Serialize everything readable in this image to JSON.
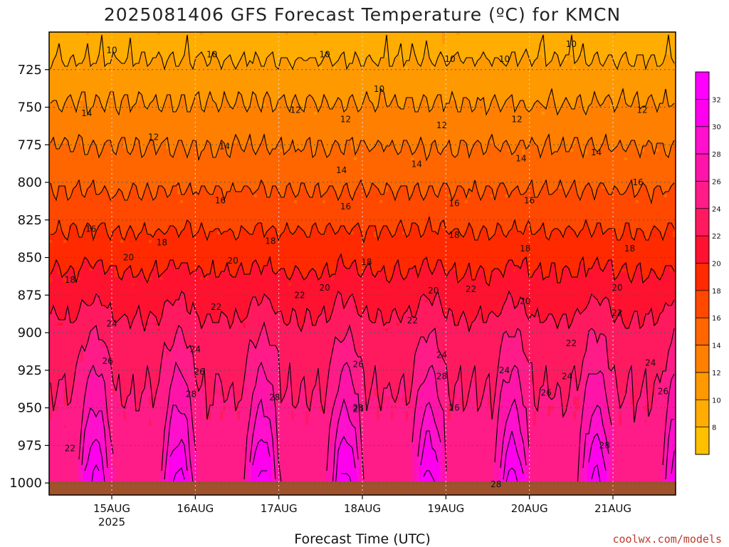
{
  "chart_data": {
    "type": "heatmap",
    "title": "2025081406 GFS Forecast Temperature (ºC) for KMCN",
    "xlabel": "Forecast Time (UTC)",
    "ylabel": "",
    "credit": "coolwx.com/models",
    "y_ticks": [
      "725",
      "750",
      "775",
      "800",
      "825",
      "850",
      "875",
      "900",
      "925",
      "950",
      "975",
      "1000"
    ],
    "y_tick_values": [
      725,
      750,
      775,
      800,
      825,
      850,
      875,
      900,
      925,
      950,
      975,
      1000
    ],
    "ylim": [
      700,
      1008
    ],
    "y_inverted": true,
    "x_ticks": [
      "15AUG",
      "16AUG",
      "17AUG",
      "18AUG",
      "19AUG",
      "20AUG",
      "21AUG"
    ],
    "x_year": "2025",
    "xlim_days": [
      14.25,
      21.75
    ],
    "colorbar": {
      "ticks": [
        "8",
        "10",
        "12",
        "14",
        "16",
        "18",
        "20",
        "22",
        "24",
        "26",
        "28",
        "30",
        "32"
      ],
      "levels": [
        8,
        10,
        12,
        14,
        16,
        18,
        20,
        22,
        24,
        26,
        28,
        30,
        32
      ],
      "range": [
        6,
        34
      ],
      "colors": [
        "#ffc000",
        "#ffad00",
        "#ff9900",
        "#ff8000",
        "#ff6600",
        "#ff4800",
        "#ff2a00",
        "#ff1230",
        "#ff1a60",
        "#ff1c88",
        "#ff14aa",
        "#ff10cc",
        "#ff00ee",
        "#ff00ff"
      ]
    },
    "profile_afternoon": [
      {
        "p": 712,
        "t": 9.5
      },
      {
        "p": 725,
        "t": 10.5
      },
      {
        "p": 750,
        "t": 12.2
      },
      {
        "p": 775,
        "t": 13.9
      },
      {
        "p": 800,
        "t": 15.6
      },
      {
        "p": 825,
        "t": 17.5
      },
      {
        "p": 850,
        "t": 19.6
      },
      {
        "p": 875,
        "t": 21.8
      },
      {
        "p": 900,
        "t": 24.0
      },
      {
        "p": 925,
        "t": 26.0
      },
      {
        "p": 950,
        "t": 28.0
      },
      {
        "p": 975,
        "t": 30.5
      },
      {
        "p": 1000,
        "t": 33.0
      }
    ],
    "profile_night": [
      {
        "p": 712,
        "t": 9.5
      },
      {
        "p": 725,
        "t": 10.5
      },
      {
        "p": 750,
        "t": 12.2
      },
      {
        "p": 775,
        "t": 13.9
      },
      {
        "p": 800,
        "t": 15.6
      },
      {
        "p": 825,
        "t": 17.4
      },
      {
        "p": 850,
        "t": 19.3
      },
      {
        "p": 875,
        "t": 21.0
      },
      {
        "p": 900,
        "t": 22.6
      },
      {
        "p": 925,
        "t": 23.6
      },
      {
        "p": 950,
        "t": 24.2
      },
      {
        "p": 975,
        "t": 24.8
      },
      {
        "p": 1000,
        "t": 25.4
      }
    ],
    "contour_labels": [
      {
        "value": "10",
        "day": 15.0,
        "p": 712
      },
      {
        "value": "10",
        "day": 16.2,
        "p": 715
      },
      {
        "value": "10",
        "day": 17.55,
        "p": 715
      },
      {
        "value": "10",
        "day": 18.2,
        "p": 738
      },
      {
        "value": "10",
        "day": 19.05,
        "p": 718
      },
      {
        "value": "10",
        "day": 19.7,
        "p": 718
      },
      {
        "value": "10",
        "day": 20.5,
        "p": 708
      },
      {
        "value": "12",
        "day": 15.5,
        "p": 770
      },
      {
        "value": "12",
        "day": 17.2,
        "p": 752
      },
      {
        "value": "12",
        "day": 17.8,
        "p": 758
      },
      {
        "value": "12",
        "day": 18.95,
        "p": 762
      },
      {
        "value": "12",
        "day": 19.85,
        "p": 758
      },
      {
        "value": "12",
        "day": 21.35,
        "p": 752
      },
      {
        "value": "14",
        "day": 14.7,
        "p": 754
      },
      {
        "value": "14",
        "day": 16.35,
        "p": 776
      },
      {
        "value": "14",
        "day": 17.75,
        "p": 792
      },
      {
        "value": "14",
        "day": 18.65,
        "p": 788
      },
      {
        "value": "14",
        "day": 19.9,
        "p": 784
      },
      {
        "value": "14",
        "day": 20.8,
        "p": 780
      },
      {
        "value": "16",
        "day": 14.75,
        "p": 831
      },
      {
        "value": "16",
        "day": 16.3,
        "p": 812
      },
      {
        "value": "16",
        "day": 17.8,
        "p": 816
      },
      {
        "value": "16",
        "day": 19.1,
        "p": 814
      },
      {
        "value": "16",
        "day": 20.0,
        "p": 812
      },
      {
        "value": "16",
        "day": 21.3,
        "p": 800
      },
      {
        "value": "18",
        "day": 14.5,
        "p": 865
      },
      {
        "value": "18",
        "day": 15.6,
        "p": 840
      },
      {
        "value": "18",
        "day": 16.9,
        "p": 839
      },
      {
        "value": "18",
        "day": 18.05,
        "p": 853
      },
      {
        "value": "18",
        "day": 19.1,
        "p": 835
      },
      {
        "value": "18",
        "day": 19.95,
        "p": 844
      },
      {
        "value": "18",
        "day": 21.2,
        "p": 844
      },
      {
        "value": "20",
        "day": 15.2,
        "p": 850
      },
      {
        "value": "20",
        "day": 16.45,
        "p": 852
      },
      {
        "value": "20",
        "day": 17.55,
        "p": 870
      },
      {
        "value": "20",
        "day": 18.85,
        "p": 872
      },
      {
        "value": "20",
        "day": 19.95,
        "p": 879
      },
      {
        "value": "20",
        "day": 21.05,
        "p": 870
      },
      {
        "value": "22",
        "day": 16.25,
        "p": 883
      },
      {
        "value": "22",
        "day": 17.25,
        "p": 875
      },
      {
        "value": "22",
        "day": 18.6,
        "p": 892
      },
      {
        "value": "22",
        "day": 19.3,
        "p": 871
      },
      {
        "value": "22",
        "day": 20.5,
        "p": 907
      },
      {
        "value": "22",
        "day": 21.05,
        "p": 887
      },
      {
        "value": "22",
        "day": 14.5,
        "p": 977
      },
      {
        "value": "24",
        "day": 15.0,
        "p": 894
      },
      {
        "value": "24",
        "day": 16.0,
        "p": 911
      },
      {
        "value": "24",
        "day": 17.95,
        "p": 951
      },
      {
        "value": "24",
        "day": 18.95,
        "p": 915
      },
      {
        "value": "24",
        "day": 20.45,
        "p": 929
      },
      {
        "value": "24",
        "day": 21.45,
        "p": 920
      },
      {
        "value": "24",
        "day": 19.7,
        "p": 925
      },
      {
        "value": "26",
        "day": 14.95,
        "p": 919
      },
      {
        "value": "26",
        "day": 16.05,
        "p": 926
      },
      {
        "value": "26",
        "day": 17.95,
        "p": 921
      },
      {
        "value": "26",
        "day": 19.1,
        "p": 950
      },
      {
        "value": "26",
        "day": 20.2,
        "p": 940
      },
      {
        "value": "26",
        "day": 21.6,
        "p": 939
      },
      {
        "value": "28",
        "day": 15.95,
        "p": 941
      },
      {
        "value": "28",
        "day": 16.95,
        "p": 943
      },
      {
        "value": "28",
        "day": 17.95,
        "p": 950
      },
      {
        "value": "28",
        "day": 18.95,
        "p": 929
      },
      {
        "value": "28",
        "day": 20.9,
        "p": 975
      },
      {
        "value": "28",
        "day": 19.6,
        "p": 1001
      }
    ]
  },
  "colors": {
    "ground": "#a0522d",
    "contour": "#000000",
    "grid": "#555555"
  }
}
